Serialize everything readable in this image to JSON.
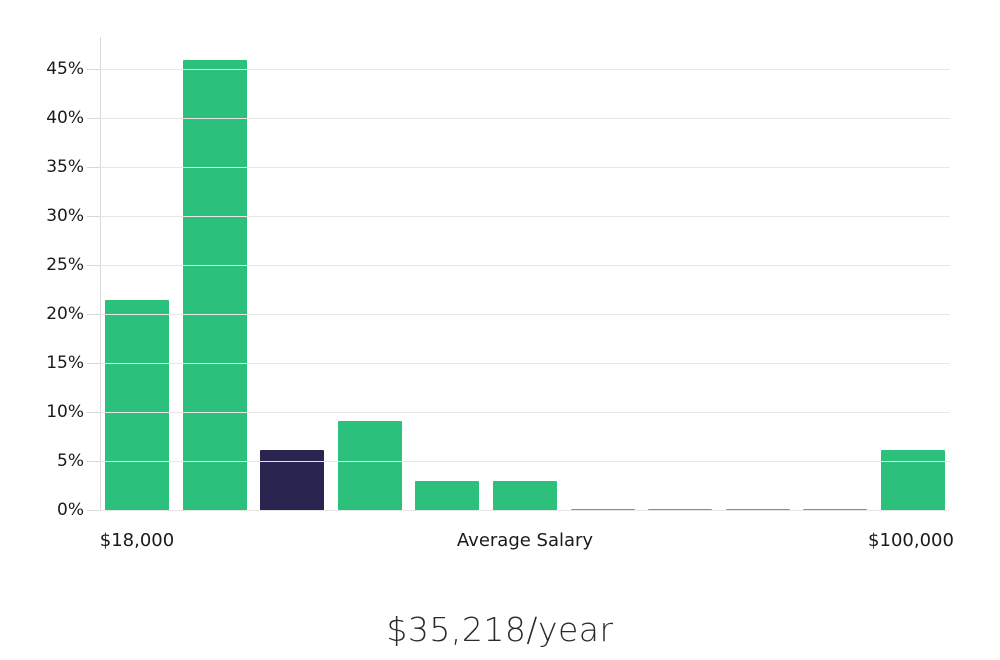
{
  "chart_data": {
    "type": "bar",
    "title": "$35,218/year",
    "x_axis": {
      "label_min": "$18,000",
      "label_title": "Average Salary",
      "label_max": "$100,000"
    },
    "yticks": [
      "0%",
      "5%",
      "10%",
      "15%",
      "20%",
      "25%",
      "30%",
      "35%",
      "40%",
      "45%"
    ],
    "ytick_step_percent": 5,
    "ylim": [
      0,
      48
    ],
    "values": [
      21.5,
      46,
      6.2,
      9.2,
      3.1,
      3.1,
      0.2,
      0.2,
      0.2,
      0.2,
      6.2
    ],
    "highlight_index": 2,
    "bar_color": "#2bc17c",
    "highlight_color": "#2a2550",
    "grid": true,
    "gridline_color": "#e6e6e6",
    "axis_color": "#d8d8d8",
    "text_color": "#1a1a1a",
    "legend": "none"
  }
}
